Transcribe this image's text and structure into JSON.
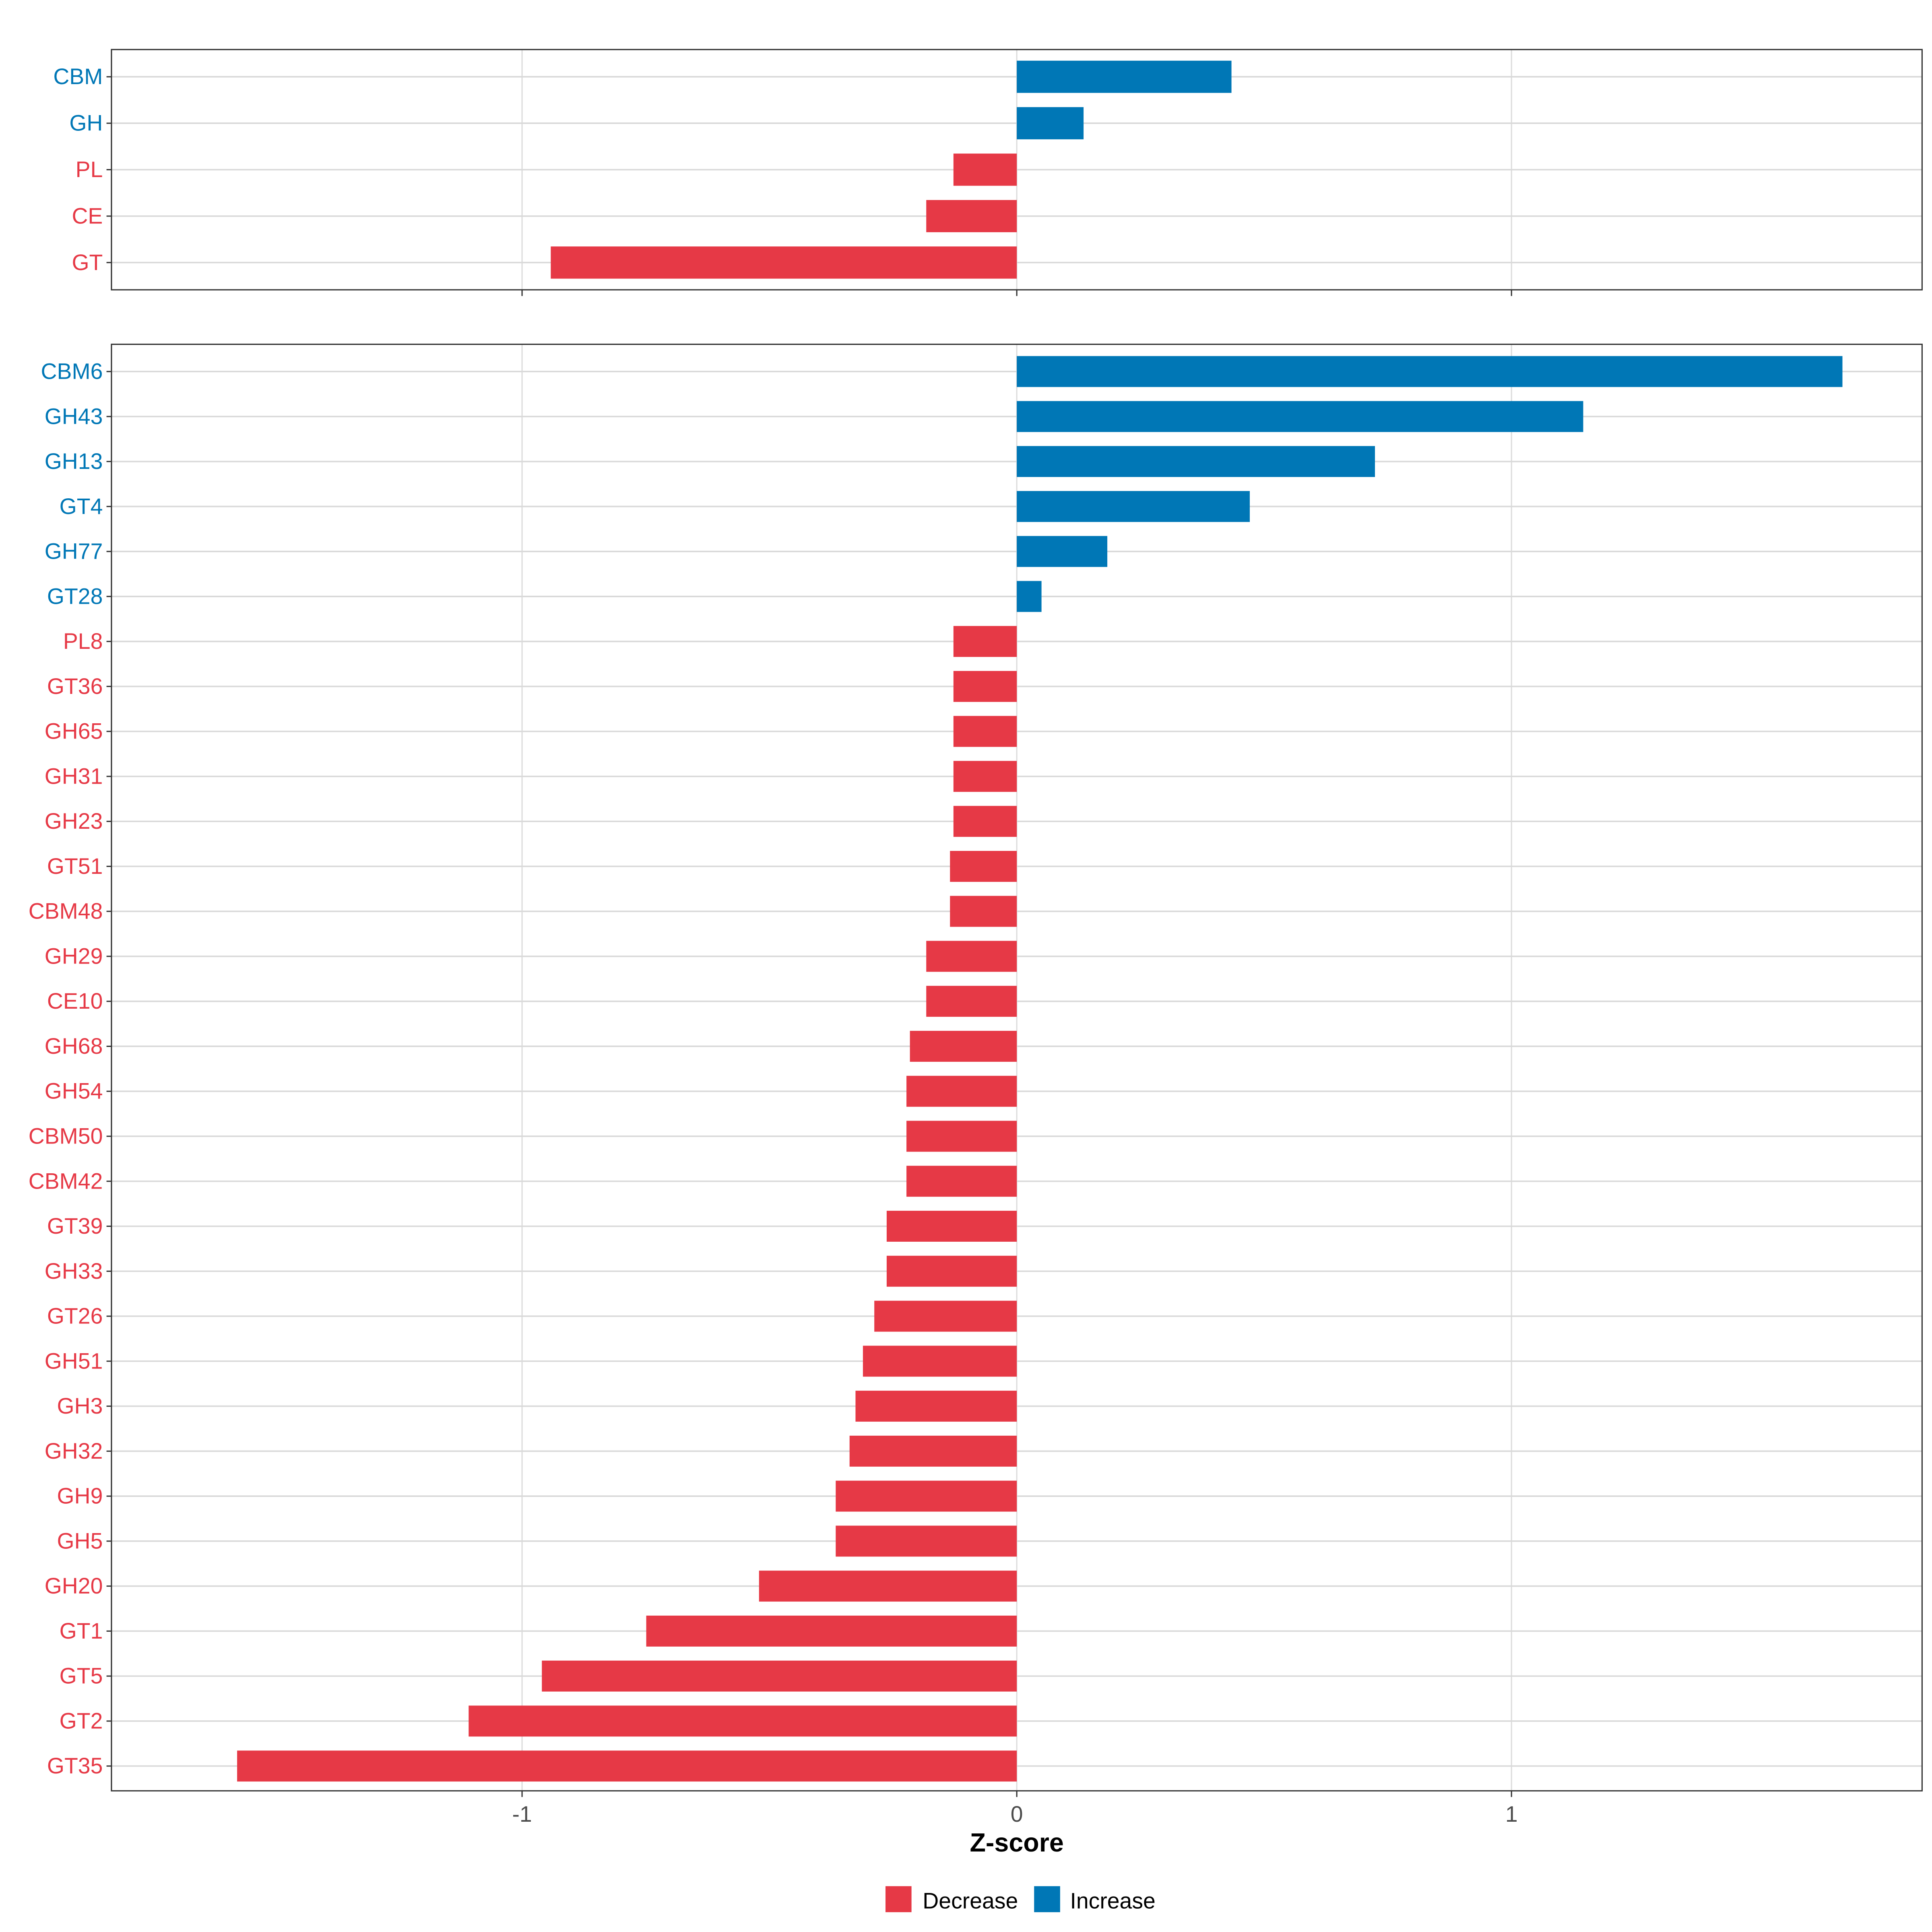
{
  "chart_data": [
    {
      "type": "bar",
      "orientation": "horizontal",
      "panel": "top",
      "categories": [
        "CBM",
        "GH",
        "PL",
        "CE",
        "GT"
      ],
      "values": [
        0.434,
        0.135,
        -0.128,
        -0.183,
        -0.942
      ],
      "xlim": [
        -1.83,
        1.83
      ],
      "xticks": [
        -1,
        0,
        1
      ],
      "grid": true
    },
    {
      "type": "bar",
      "orientation": "horizontal",
      "panel": "bottom",
      "categories": [
        "CBM6",
        "GH43",
        "GH13",
        "GT4",
        "GH77",
        "GT28",
        "PL8",
        "GT36",
        "GH65",
        "GH31",
        "GH23",
        "GT51",
        "CBM48",
        "GH29",
        "CE10",
        "GH68",
        "GH54",
        "CBM50",
        "CBM42",
        "GT39",
        "GH33",
        "GT26",
        "GH51",
        "GH3",
        "GH32",
        "GH9",
        "GH5",
        "GH20",
        "GT1",
        "GT5",
        "GT2",
        "GT35"
      ],
      "values": [
        1.669,
        1.145,
        0.724,
        0.471,
        0.183,
        0.05,
        -0.128,
        -0.128,
        -0.128,
        -0.128,
        -0.128,
        -0.135,
        -0.135,
        -0.183,
        -0.183,
        -0.216,
        -0.223,
        -0.223,
        -0.223,
        -0.263,
        -0.263,
        -0.288,
        -0.311,
        -0.326,
        -0.338,
        -0.366,
        -0.366,
        -0.521,
        -0.749,
        -0.96,
        -1.108,
        -1.576
      ],
      "xlim": [
        -1.83,
        1.83
      ],
      "xticks": [
        -1,
        0,
        1
      ],
      "xtick_labels": [
        "-1",
        "0",
        "1"
      ],
      "xlabel": "Z-score",
      "grid": true
    }
  ],
  "legend": {
    "placement": "bottom",
    "items": [
      {
        "label": "Decrease",
        "color": "#E63946"
      },
      {
        "label": "Increase",
        "color": "#0077B6"
      }
    ]
  },
  "colors": {
    "decrease": "#E63946",
    "increase": "#0077B6"
  }
}
